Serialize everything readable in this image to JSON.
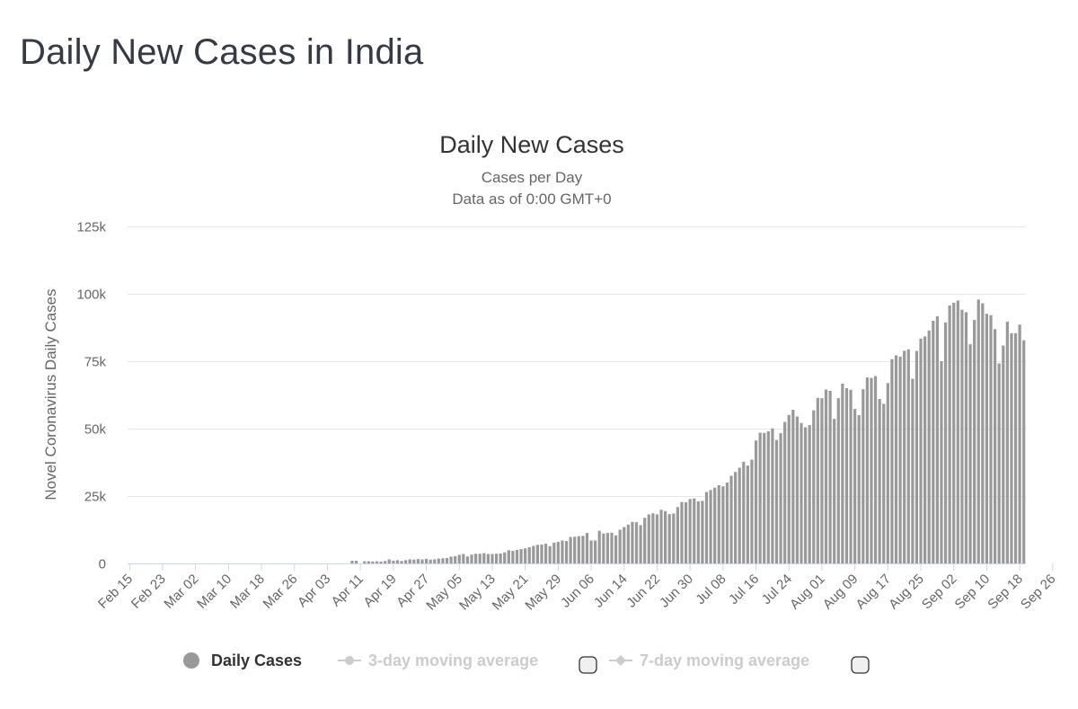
{
  "page": {
    "title": "Daily New Cases in India"
  },
  "colors": {
    "bar": "#999999",
    "legend_inactive": "#cccccc",
    "grid": "#e6e6e6",
    "axis": "#ccd6eb"
  },
  "chart_data": {
    "type": "bar",
    "title": "Daily New Cases",
    "subtitle": "Cases per Day",
    "subtitle2": "Data as of 0:00 GMT+0",
    "ylabel": "Novel Coronavirus Daily Cases",
    "xlabel": "",
    "ylim": [
      0,
      125000
    ],
    "yticks": [
      0,
      25000,
      50000,
      75000,
      100000,
      125000
    ],
    "ytick_labels": [
      "0",
      "25k",
      "50k",
      "75k",
      "100k",
      "125k"
    ],
    "x_start": "Feb 15",
    "xtick_labels": [
      "Feb 15",
      "Feb 23",
      "Mar 02",
      "Mar 10",
      "Mar 18",
      "Mar 26",
      "Apr 03",
      "Apr 11",
      "Apr 19",
      "Apr 27",
      "May 05",
      "May 13",
      "May 21",
      "May 29",
      "Jun 06",
      "Jun 14",
      "Jun 22",
      "Jun 30",
      "Jul 08",
      "Jul 16",
      "Jul 24",
      "Aug 01",
      "Aug 09",
      "Aug 17",
      "Aug 25",
      "Sep 02",
      "Sep 10",
      "Sep 18",
      "Sep 26"
    ],
    "xtick_every_days": 8,
    "series": [
      {
        "name": "Daily Cases",
        "values": [
          0,
          0,
          0,
          0,
          0,
          0,
          0,
          0,
          0,
          0,
          0,
          0,
          0,
          0,
          0,
          0,
          0,
          0,
          0,
          0,
          0,
          0,
          0,
          0,
          0,
          0,
          0,
          0,
          0,
          0,
          0,
          0,
          0,
          0,
          0,
          0,
          0,
          0,
          0,
          0,
          0,
          0,
          0,
          0,
          0,
          0,
          0,
          0,
          0,
          0,
          0,
          0,
          0,
          0,
          1000,
          1000,
          0,
          800,
          800,
          700,
          800,
          700,
          900,
          1500,
          1000,
          1200,
          900,
          1200,
          1500,
          1400,
          1600,
          1500,
          1700,
          1400,
          1500,
          1800,
          1900,
          2000,
          2500,
          2700,
          3200,
          3500,
          2600,
          3300,
          3600,
          3600,
          3800,
          3500,
          3500,
          3600,
          3700,
          4100,
          4900,
          4700,
          5000,
          5300,
          5600,
          6000,
          6500,
          6900,
          7000,
          7300,
          6400,
          7700,
          8000,
          8500,
          8300,
          9800,
          9900,
          10100,
          10200,
          11300,
          8500,
          8500,
          12100,
          11100,
          11300,
          11400,
          10400,
          12500,
          13500,
          14400,
          15400,
          15300,
          14200,
          16900,
          18200,
          18600,
          18200,
          19900,
          19400,
          18300,
          18500,
          20900,
          22800,
          22700,
          23900,
          24100,
          23000,
          23200,
          26500,
          27200,
          28100,
          29000,
          28600,
          30000,
          32500,
          33900,
          35500,
          37700,
          36300,
          38500,
          45600,
          48500,
          48400,
          49000,
          50100,
          45800,
          48300,
          52500,
          55100,
          57000,
          54500,
          52100,
          50500,
          51300,
          56800,
          61400,
          61300,
          64500,
          64000,
          53600,
          61300,
          66700,
          65000,
          64400,
          57300,
          55000,
          64600,
          69000,
          68800,
          69500,
          61000,
          59200,
          66900,
          75800,
          77200,
          76700,
          78900,
          79400,
          68500,
          78800,
          83400,
          84200,
          86400,
          90000,
          91700,
          75000,
          89400,
          95700,
          96700,
          97500,
          94100,
          93200,
          81300,
          90300,
          97900,
          96500,
          92600,
          92100,
          86900,
          74200,
          80800,
          89700,
          85400,
          85400,
          88600,
          82800
        ]
      }
    ],
    "legend": [
      {
        "label": "Daily Cases",
        "active": true
      },
      {
        "label": "3-day moving average",
        "active": false
      },
      {
        "label": "7-day moving average",
        "active": false
      }
    ]
  }
}
